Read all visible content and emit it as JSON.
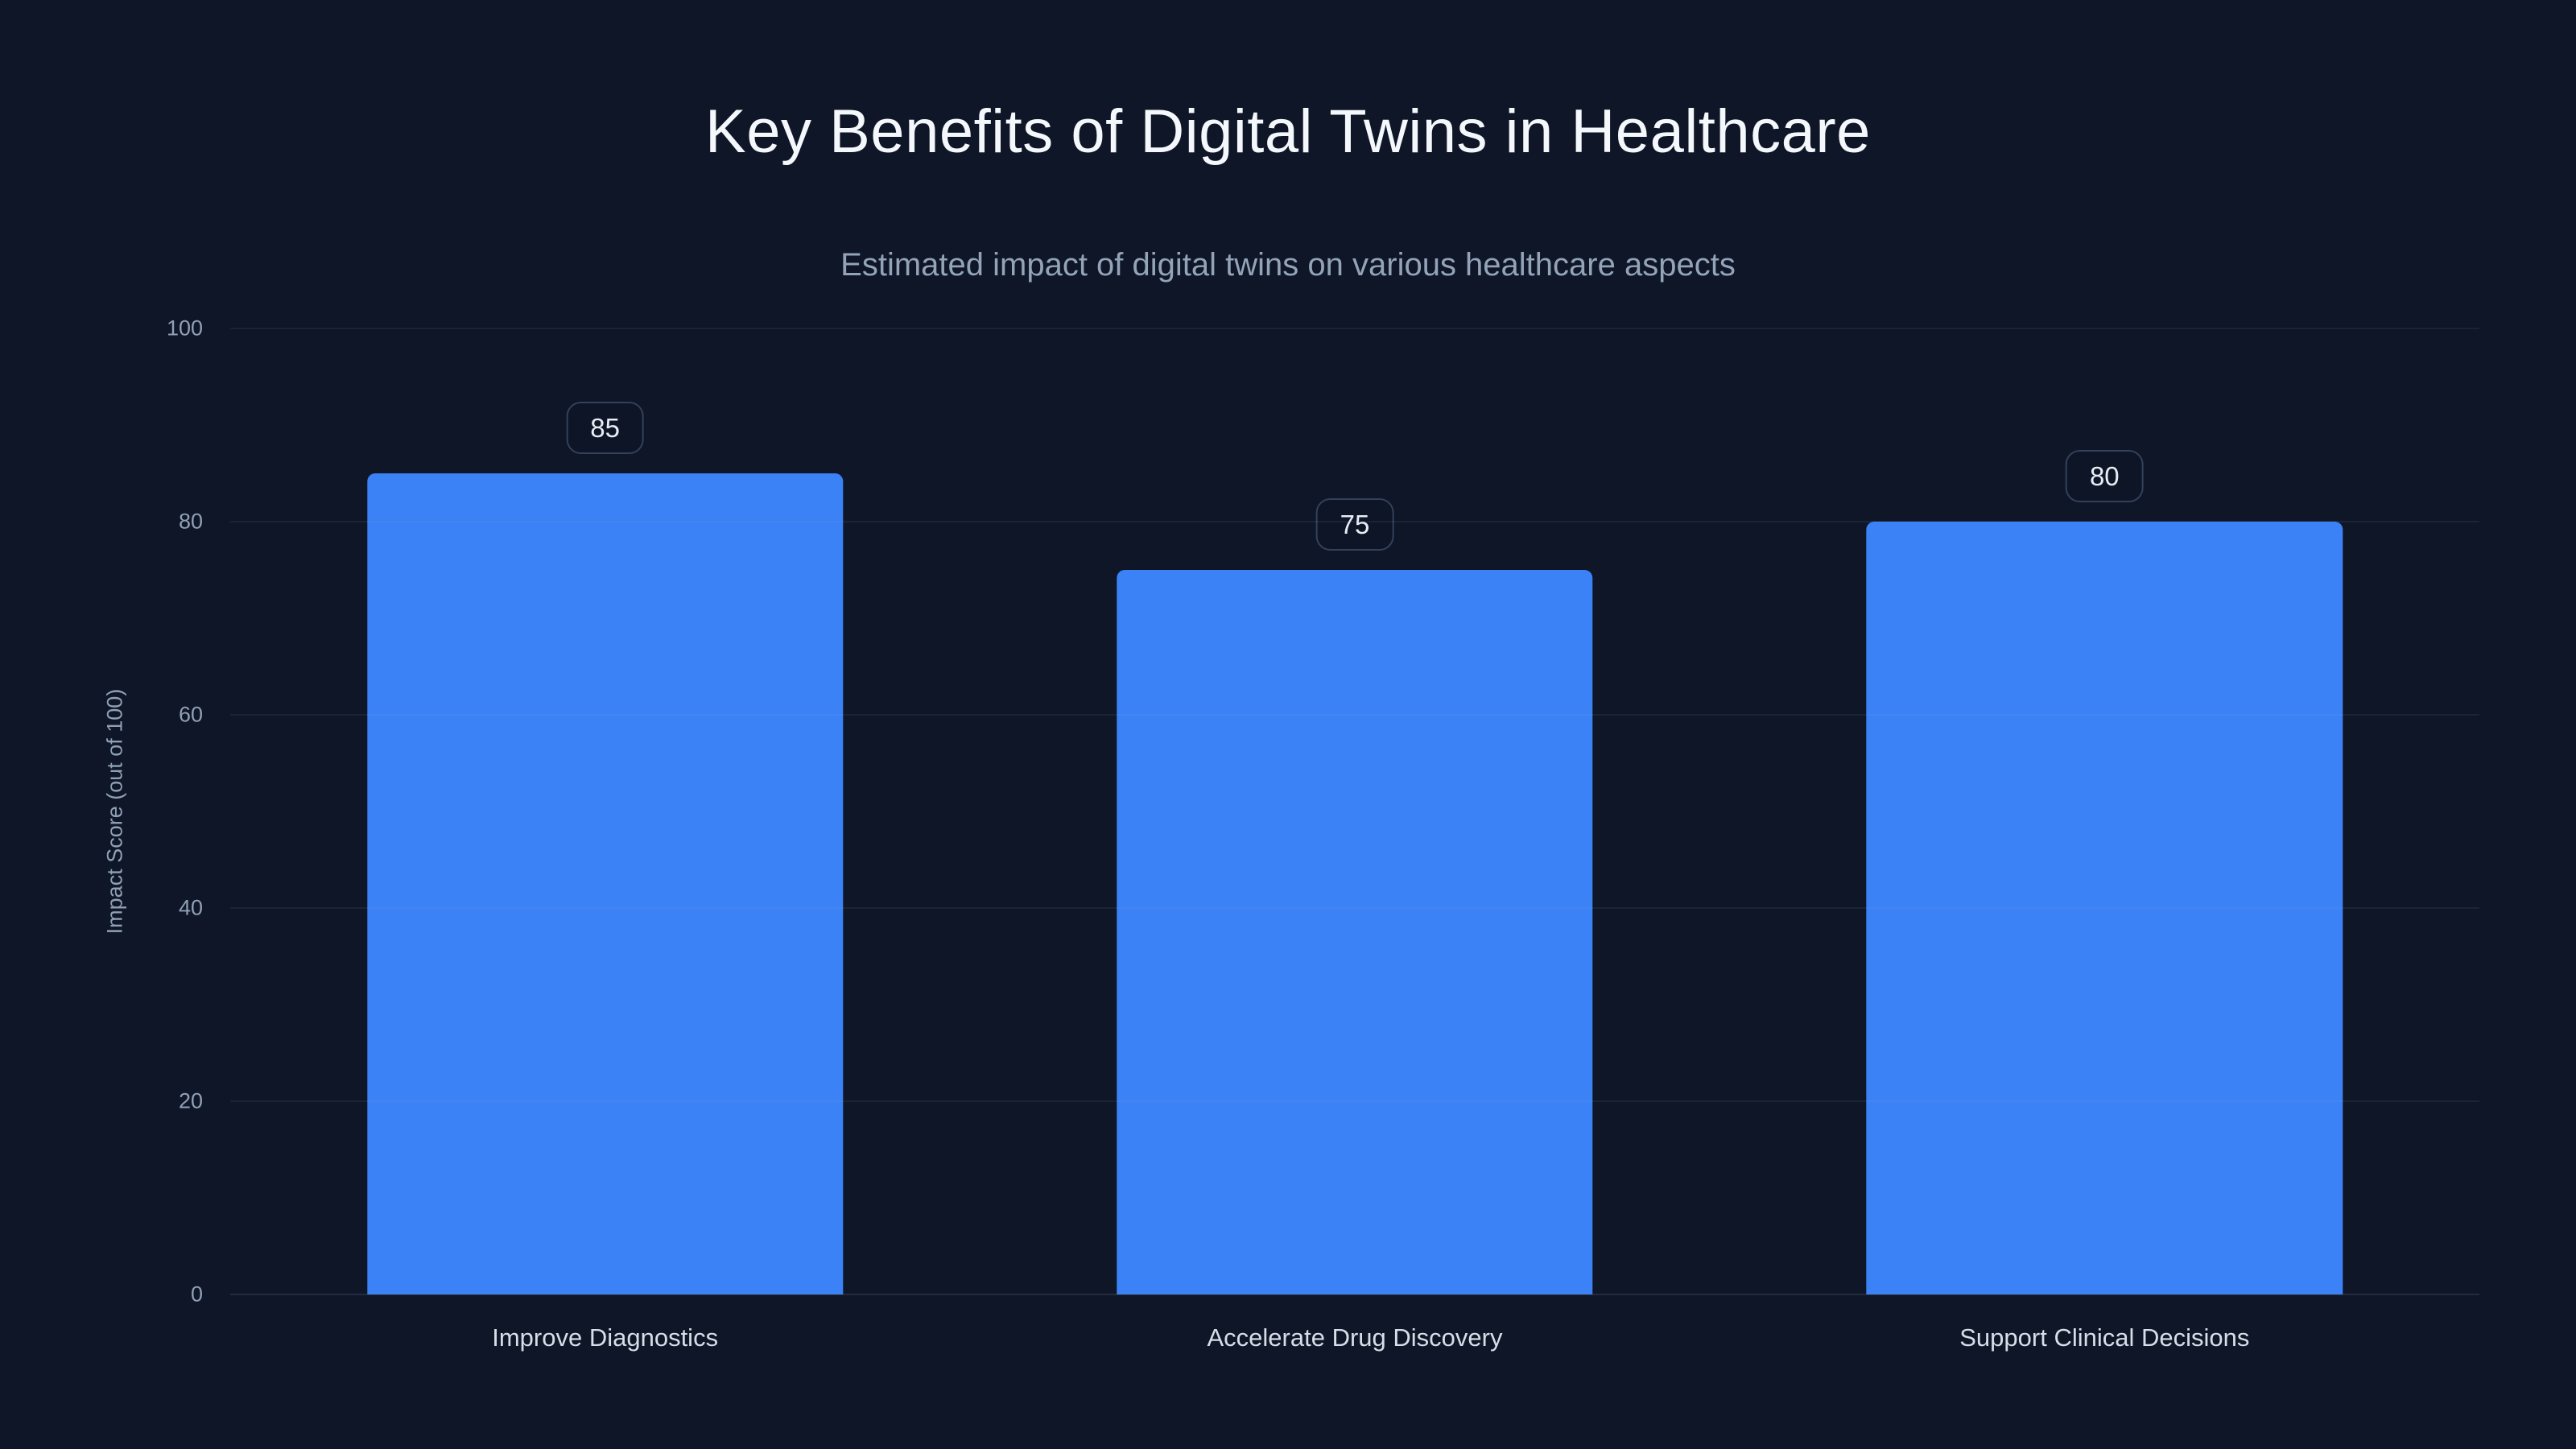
{
  "page": {
    "background_color": "#0e1627"
  },
  "chart_data": {
    "type": "bar",
    "title": "Key Benefits of Digital Twins in Healthcare",
    "subtitle": "Estimated impact of digital twins on various healthcare aspects",
    "categories": [
      "Improve Diagnostics",
      "Accelerate Drug Discovery",
      "Support Clinical Decisions"
    ],
    "values": [
      85,
      75,
      80
    ],
    "value_labels": [
      "85",
      "75",
      "80"
    ],
    "xlabel": "",
    "ylabel": "Impact Score (out of 100)",
    "ylim": [
      0,
      100
    ],
    "yticks": [
      0,
      20,
      40,
      60,
      80,
      100
    ],
    "grid": "horizontal",
    "legend": "none",
    "bar_color": "#3b82f6",
    "colors": {
      "background": "#0e1627",
      "title_text": "#f4f7fb",
      "subtitle_text": "#93a3b8",
      "axis_text": "#90a0b6",
      "category_text": "#d7dee8",
      "gridline": "rgba(148,163,184,0.10)",
      "badge_border": "#33415a",
      "badge_text": "#e8edf4"
    }
  }
}
